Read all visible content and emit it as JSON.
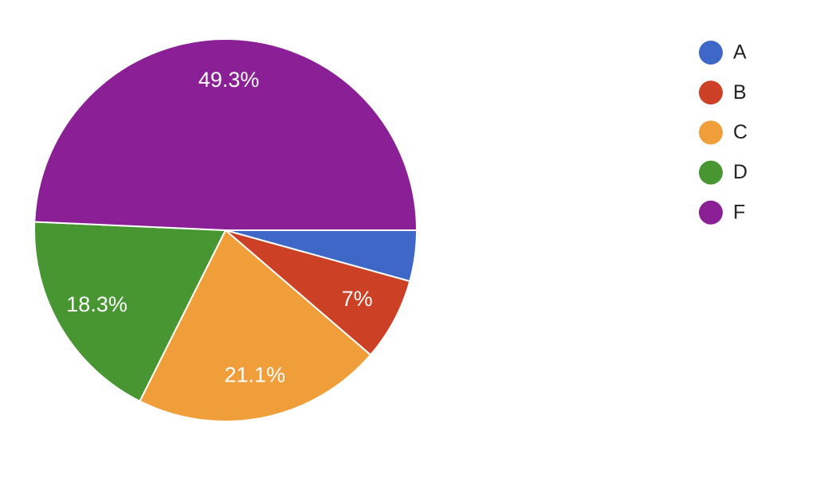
{
  "chart_data": {
    "type": "pie",
    "categories": [
      "A",
      "B",
      "C",
      "D",
      "F"
    ],
    "values": [
      4.3,
      7,
      21.1,
      18.3,
      49.3
    ],
    "value_labels": [
      null,
      "7%",
      "21.1%",
      "18.3%",
      "49.3%"
    ],
    "colors": [
      "#3f67c8",
      "#cc4125",
      "#f09e39",
      "#489632",
      "#8a1f96"
    ],
    "legend": "right"
  }
}
